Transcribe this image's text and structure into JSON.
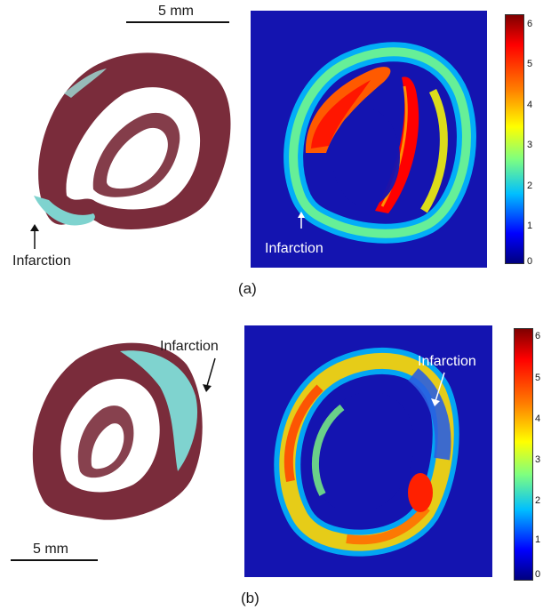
{
  "panel_a": {
    "scale_label": "5 mm",
    "infarction_label_histology": "Infarction",
    "infarction_label_map": "Infarction",
    "caption": "(a)",
    "colorbar_ticks": [
      "6",
      "5",
      "4",
      "3",
      "2",
      "1",
      "0"
    ]
  },
  "panel_b": {
    "scale_label": "5 mm",
    "infarction_label_histology": "Infarction",
    "infarction_label_map": "Infarction",
    "caption": "(b)",
    "colorbar_ticks": [
      "6",
      "5",
      "4",
      "3",
      "2",
      "1",
      "0"
    ]
  },
  "colors": {
    "tissue": "#7a2c3b",
    "infarct_stain": "#7fd3cf",
    "map_background": "#1414b0",
    "colormap": [
      "#00007f",
      "#0000ff",
      "#00bfff",
      "#7fff7f",
      "#ffff00",
      "#ff7f00",
      "#ff0000",
      "#7f0000"
    ]
  }
}
